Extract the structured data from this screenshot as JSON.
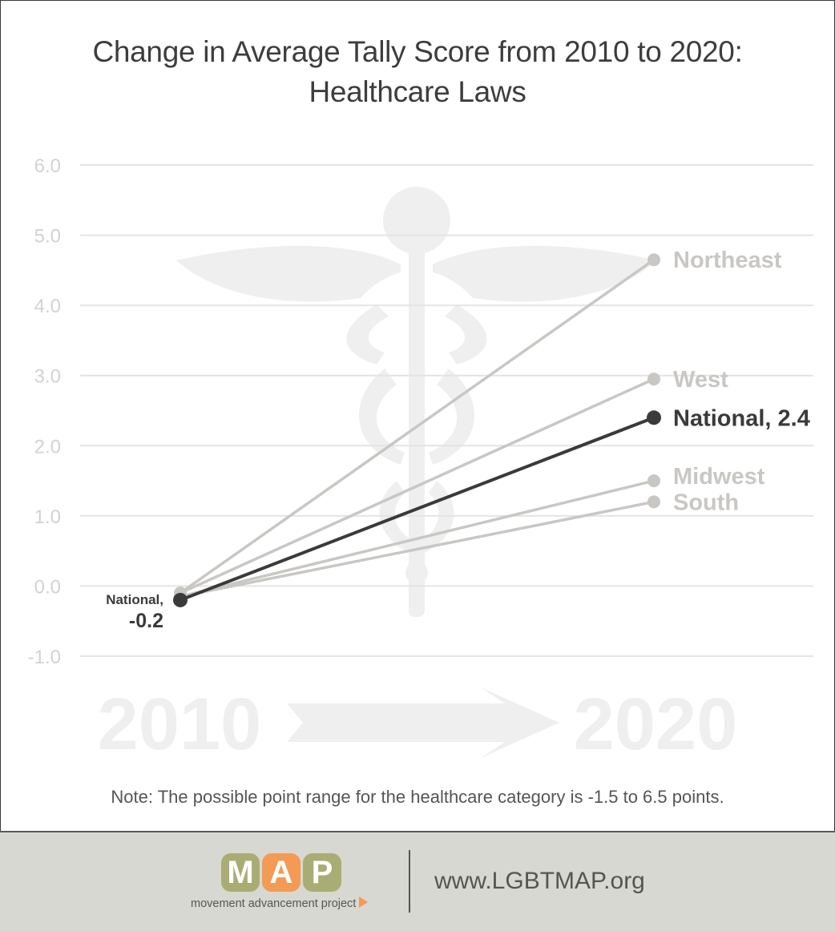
{
  "chart_data": {
    "type": "line",
    "title_lines": [
      "Change in Average Tally Score from 2010 to 2020:",
      "Healthcare Laws"
    ],
    "xlabel": "",
    "ylabel": "",
    "x": [
      "2010",
      "2020"
    ],
    "ylim": [
      -1.0,
      6.0
    ],
    "yticks": [
      "6.0",
      "5.0",
      "4.0",
      "3.0",
      "2.0",
      "1.0",
      "0.0",
      "-1.0"
    ],
    "ytick_values": [
      6,
      5,
      4,
      3,
      2,
      1,
      0,
      -1
    ],
    "grid": true,
    "series": [
      {
        "name": "Northeast",
        "values": [
          -0.1,
          4.65
        ],
        "color": "#c9c7c4"
      },
      {
        "name": "West",
        "values": [
          -0.1,
          2.95
        ],
        "color": "#c9c7c4"
      },
      {
        "name": "Midwest",
        "values": [
          -0.15,
          1.5
        ],
        "color": "#c9c7c4"
      },
      {
        "name": "South",
        "values": [
          -0.15,
          1.2
        ],
        "color": "#c9c7c4"
      },
      {
        "name": "National",
        "values": [
          -0.2,
          2.4
        ],
        "color": "#3a3a3a"
      }
    ],
    "end_labels": [
      {
        "series": "Northeast",
        "text": "Northeast"
      },
      {
        "series": "West",
        "text": "West"
      },
      {
        "series": "National",
        "text": "National, 2.4"
      },
      {
        "series": "Midwest",
        "text": "Midwest"
      },
      {
        "series": "South",
        "text": "South"
      }
    ],
    "start_label": {
      "line1": "National,",
      "line2": "-0.2"
    },
    "background_years": [
      "2010",
      "2020"
    ],
    "colors": {
      "grid": "#e4e4e4",
      "tick": "#d2d2d2",
      "muted": "#c9c7c4",
      "highlight": "#3a3a3a",
      "watermark": "#efefef"
    }
  },
  "note": "Note: The possible point range for the healthcare category is -1.5 to 6.5 points.",
  "footer": {
    "logo_letters": [
      "M",
      "A",
      "P"
    ],
    "logo_colors": [
      "#a9ad73",
      "#f39a55",
      "#a9ad73"
    ],
    "logo_tagline": "movement advancement project",
    "url": "www.LGBTMAP.org",
    "background": "#d8d8d2"
  }
}
